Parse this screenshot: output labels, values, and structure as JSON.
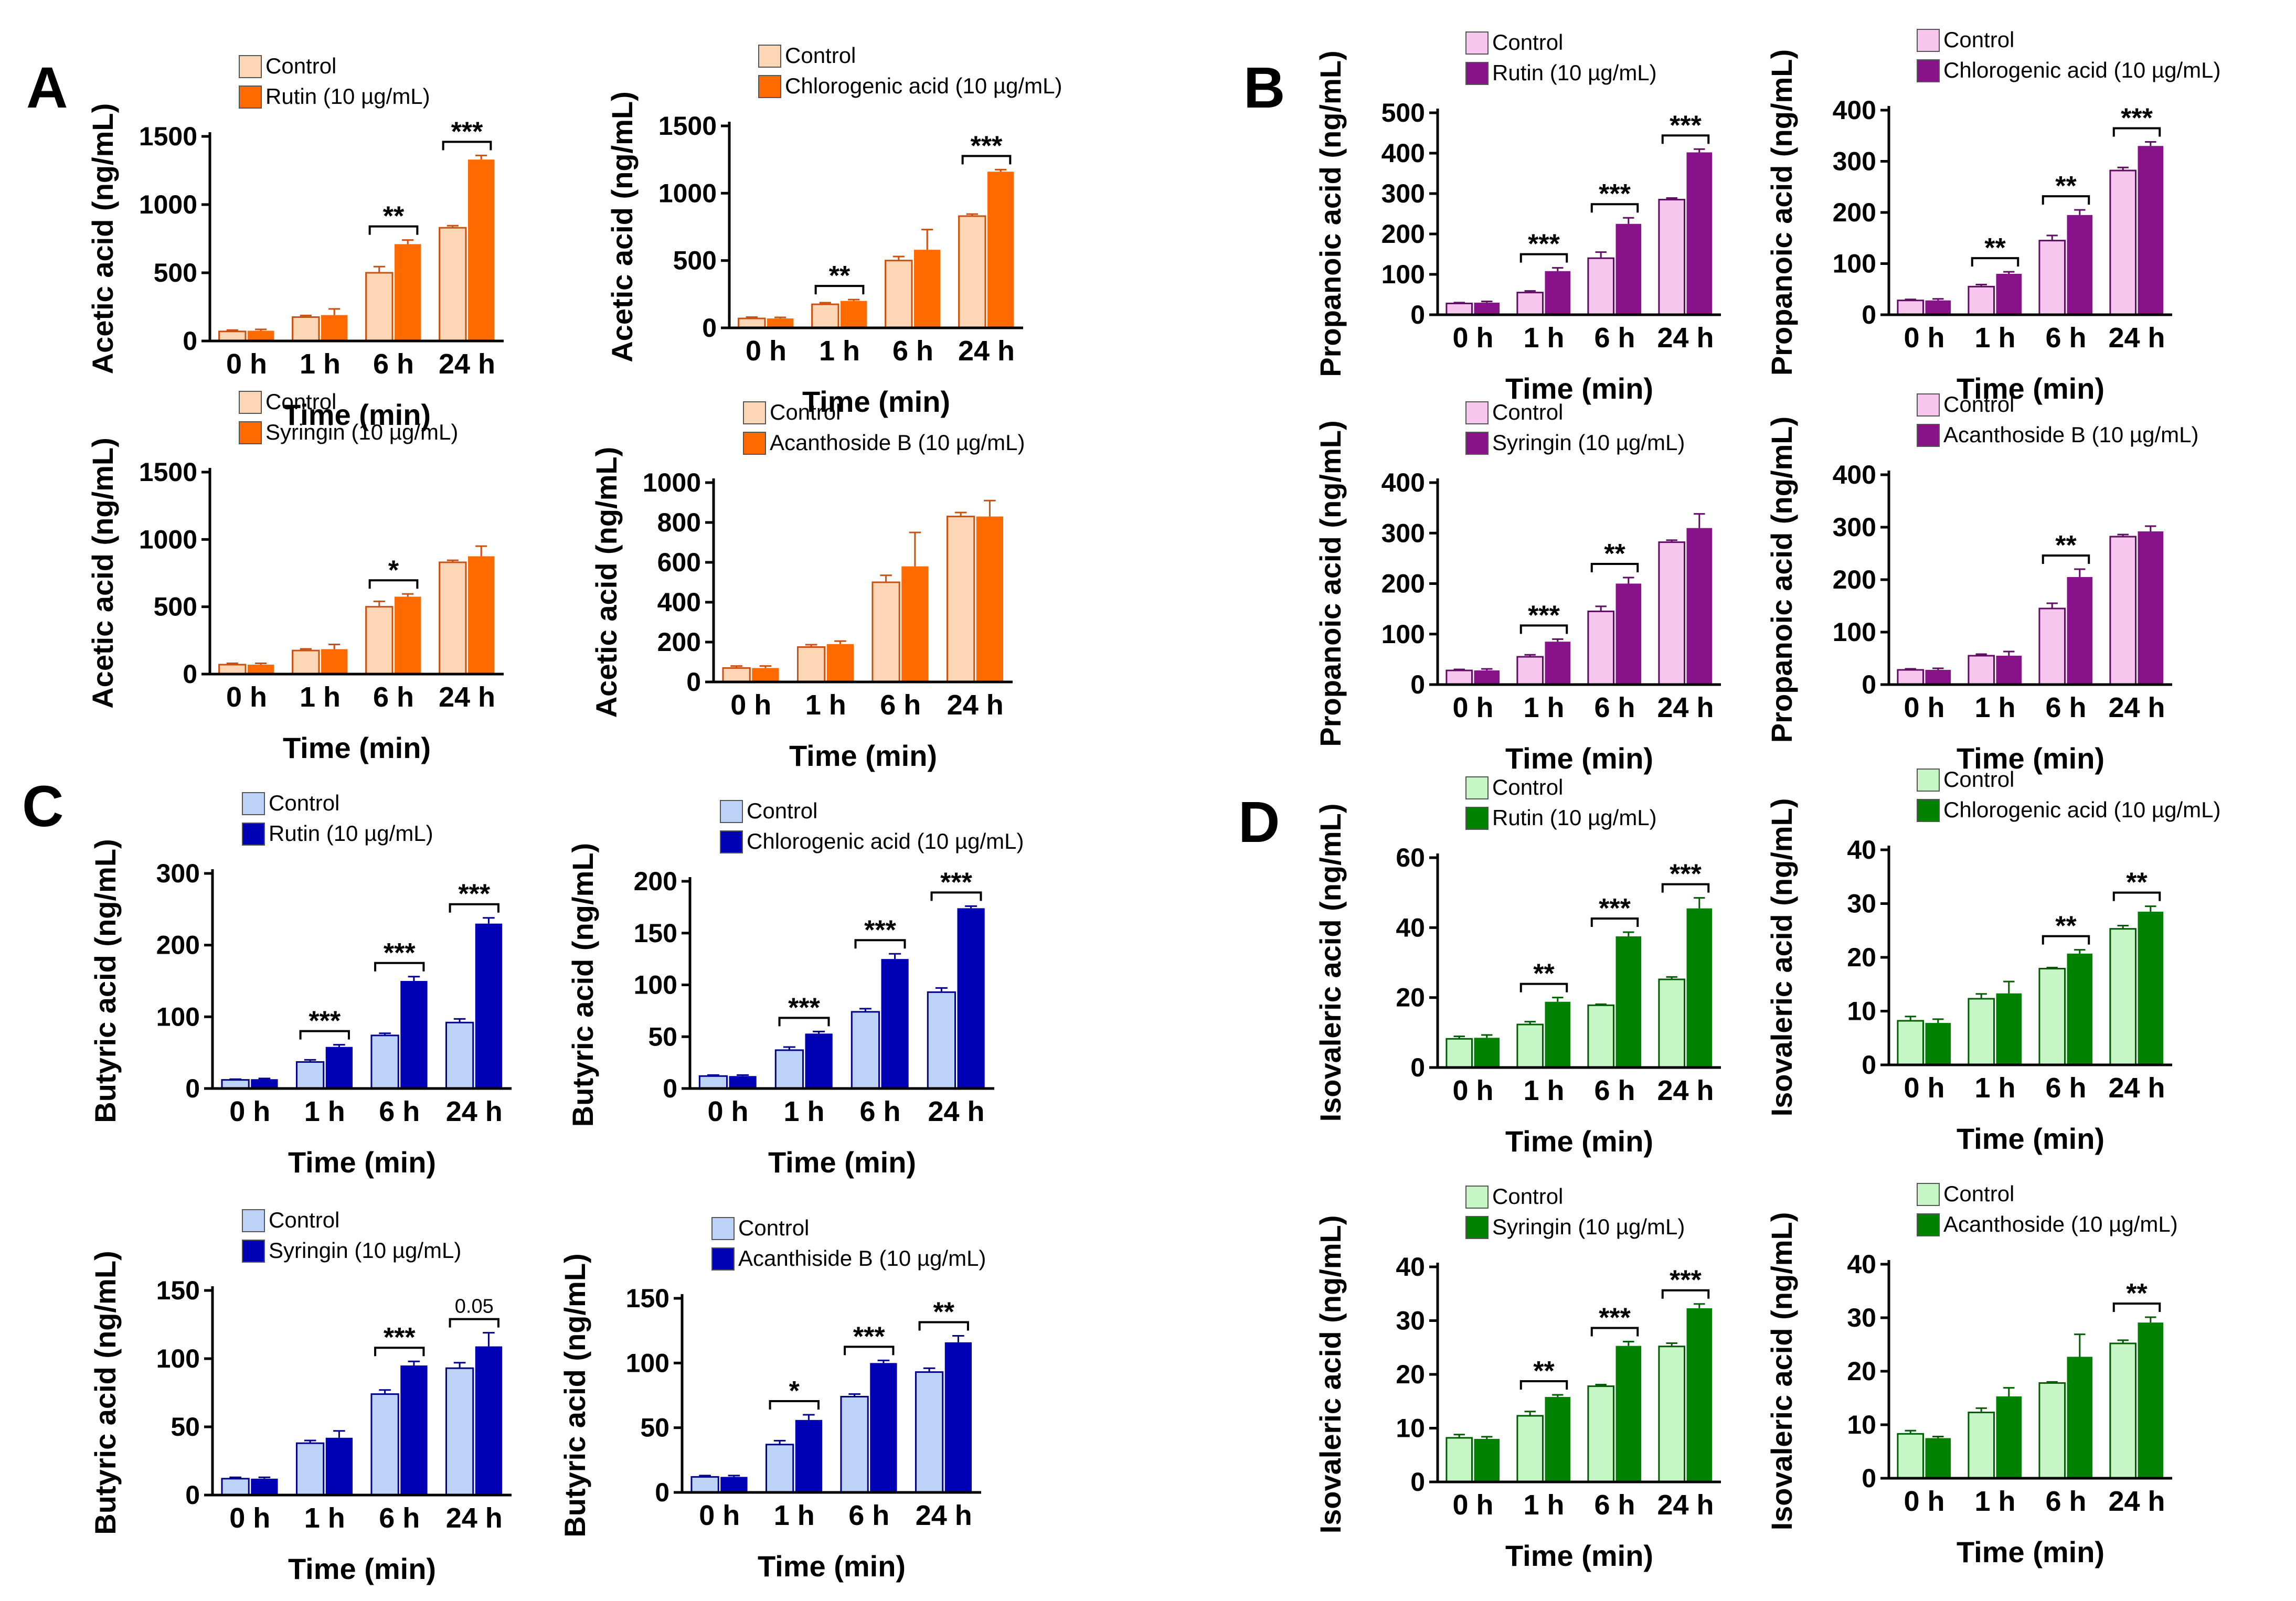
{
  "colors": {
    "acetic": {
      "control": "#fdd6b5",
      "treat": "#ff6a00",
      "err": "#c85010"
    },
    "propanoic": {
      "control": "#f6c6ef",
      "treat": "#87128a",
      "err": "#5f0d62"
    },
    "butyric": {
      "control": "#bcd2f6",
      "treat": "#0000b4",
      "err": "#000088"
    },
    "isovaleric": {
      "control": "#c6f5c6",
      "treat": "#008200",
      "err": "#005c00"
    }
  },
  "panel_letters": [
    "A",
    "B",
    "C",
    "D"
  ],
  "chart_data": [
    {
      "group": "A",
      "type": "bar",
      "palette": "acetic",
      "categories": [
        "0 h",
        "1 h",
        "6 h",
        "24 h"
      ],
      "series": [
        {
          "name": "Control",
          "values": [
            70,
            175,
            500,
            830
          ],
          "errors": [
            10,
            12,
            45,
            15
          ]
        },
        {
          "name": "Rutin (10 µg/mL)",
          "values": [
            75,
            190,
            710,
            1330
          ],
          "errors": [
            10,
            45,
            30,
            30
          ]
        }
      ],
      "ylabel": "Acetic acid (ng/mL)",
      "xlabel": "Time (min)",
      "ylim": [
        0,
        1500
      ],
      "yticks": [
        0,
        500,
        1000,
        1500
      ],
      "significance": [
        {
          "index": 2,
          "label": "**"
        },
        {
          "index": 3,
          "label": "***"
        }
      ]
    },
    {
      "group": "A",
      "type": "bar",
      "palette": "acetic",
      "categories": [
        "0 h",
        "1 h",
        "6 h",
        "24 h"
      ],
      "series": [
        {
          "name": "Control",
          "values": [
            70,
            175,
            500,
            830
          ],
          "errors": [
            10,
            12,
            30,
            15
          ]
        },
        {
          "name": "Chlorogenic acid (10 µg/mL)",
          "values": [
            70,
            200,
            580,
            1160
          ],
          "errors": [
            8,
            10,
            150,
            15
          ]
        }
      ],
      "ylabel": "Acetic acid (ng/mL)",
      "xlabel": "Time (min)",
      "ylim": [
        0,
        1500
      ],
      "yticks": [
        0,
        500,
        1000,
        1500
      ],
      "significance": [
        {
          "index": 1,
          "label": "**"
        },
        {
          "index": 3,
          "label": "***"
        }
      ]
    },
    {
      "group": "B",
      "type": "bar",
      "palette": "propanoic",
      "categories": [
        "0 h",
        "1 h",
        "6 h",
        "24 h"
      ],
      "series": [
        {
          "name": "Control",
          "values": [
            28,
            55,
            140,
            285
          ],
          "errors": [
            2,
            4,
            15,
            4
          ]
        },
        {
          "name": "Rutin (10 µg/mL)",
          "values": [
            30,
            108,
            225,
            402
          ],
          "errors": [
            3,
            8,
            15,
            8
          ]
        }
      ],
      "ylabel": "Propanoic acid (ng/mL)",
      "xlabel": "Time (min)",
      "ylim": [
        0,
        500
      ],
      "yticks": [
        0,
        100,
        200,
        300,
        400,
        500
      ],
      "significance": [
        {
          "index": 1,
          "label": "***"
        },
        {
          "index": 2,
          "label": "***"
        },
        {
          "index": 3,
          "label": "***"
        }
      ]
    },
    {
      "group": "B",
      "type": "bar",
      "palette": "propanoic",
      "categories": [
        "0 h",
        "1 h",
        "6 h",
        "24 h"
      ],
      "series": [
        {
          "name": "Control",
          "values": [
            28,
            55,
            145,
            282
          ],
          "errors": [
            2,
            4,
            10,
            6
          ]
        },
        {
          "name": "Chlorogenic acid (10 µg/mL)",
          "values": [
            28,
            80,
            195,
            330
          ],
          "errors": [
            3,
            4,
            10,
            8
          ]
        }
      ],
      "ylabel": "Propanoic acid (ng/mL)",
      "xlabel": "Time (min)",
      "ylim": [
        0,
        400
      ],
      "yticks": [
        0,
        100,
        200,
        300,
        400
      ],
      "significance": [
        {
          "index": 1,
          "label": "**"
        },
        {
          "index": 2,
          "label": "**"
        },
        {
          "index": 3,
          "label": "***"
        }
      ]
    },
    {
      "group": "A",
      "type": "bar",
      "palette": "acetic",
      "categories": [
        "0 h",
        "1 h",
        "6 h",
        "24 h"
      ],
      "series": [
        {
          "name": "Control",
          "values": [
            70,
            175,
            500,
            830
          ],
          "errors": [
            10,
            12,
            40,
            15
          ]
        },
        {
          "name": "Syringin (10 µg/mL)",
          "values": [
            70,
            185,
            575,
            875
          ],
          "errors": [
            10,
            35,
            20,
            75
          ]
        }
      ],
      "ylabel": "Acetic acid (ng/mL)",
      "xlabel": "Time (min)",
      "ylim": [
        0,
        1500
      ],
      "yticks": [
        0,
        500,
        1000,
        1500
      ],
      "significance": [
        {
          "index": 2,
          "label": "*"
        }
      ]
    },
    {
      "group": "A",
      "type": "bar",
      "palette": "acetic",
      "categories": [
        "0 h",
        "1 h",
        "6 h",
        "24 h"
      ],
      "series": [
        {
          "name": "Control",
          "values": [
            70,
            175,
            500,
            830
          ],
          "errors": [
            10,
            12,
            35,
            20
          ]
        },
        {
          "name": "Acanthoside B (10 µg/mL)",
          "values": [
            70,
            190,
            580,
            830
          ],
          "errors": [
            10,
            15,
            170,
            80
          ]
        }
      ],
      "ylabel": "Acetic acid (ng/mL)",
      "xlabel": "Time (min)",
      "ylim": [
        0,
        1000
      ],
      "yticks": [
        0,
        200,
        400,
        600,
        800,
        1000
      ],
      "significance": []
    },
    {
      "group": "B",
      "type": "bar",
      "palette": "propanoic",
      "categories": [
        "0 h",
        "1 h",
        "6 h",
        "24 h"
      ],
      "series": [
        {
          "name": "Control",
          "values": [
            28,
            55,
            145,
            282
          ],
          "errors": [
            2,
            4,
            10,
            4
          ]
        },
        {
          "name": "Syringin (10 µg/mL)",
          "values": [
            28,
            85,
            200,
            310
          ],
          "errors": [
            3,
            5,
            12,
            28
          ]
        }
      ],
      "ylabel": "Propanoic acid (ng/mL)",
      "xlabel": "Time (min)",
      "ylim": [
        0,
        400
      ],
      "yticks": [
        0,
        100,
        200,
        300,
        400
      ],
      "significance": [
        {
          "index": 1,
          "label": "***"
        },
        {
          "index": 2,
          "label": "**"
        }
      ]
    },
    {
      "group": "B",
      "type": "bar",
      "palette": "propanoic",
      "categories": [
        "0 h",
        "1 h",
        "6 h",
        "24 h"
      ],
      "series": [
        {
          "name": "Control",
          "values": [
            28,
            55,
            145,
            282
          ],
          "errors": [
            2,
            3,
            10,
            4
          ]
        },
        {
          "name": "Acanthoside B (10 µg/mL)",
          "values": [
            28,
            55,
            205,
            292
          ],
          "errors": [
            3,
            8,
            15,
            10
          ]
        }
      ],
      "ylabel": "Propanoic acid (ng/mL)",
      "xlabel": "Time (min)",
      "ylim": [
        0,
        400
      ],
      "yticks": [
        0,
        100,
        200,
        300,
        400
      ],
      "significance": [
        {
          "index": 2,
          "label": "**"
        }
      ]
    },
    {
      "group": "C",
      "type": "bar",
      "palette": "butyric",
      "categories": [
        "0 h",
        "1 h",
        "6 h",
        "24 h"
      ],
      "series": [
        {
          "name": "Control",
          "values": [
            12,
            37,
            74,
            92
          ],
          "errors": [
            1,
            3,
            3,
            5
          ]
        },
        {
          "name": "Rutin (10 µg/mL)",
          "values": [
            13,
            58,
            150,
            230
          ],
          "errors": [
            1,
            3,
            6,
            8
          ]
        }
      ],
      "ylabel": "Butyric acid (ng/mL)",
      "xlabel": "Time (min)",
      "ylim": [
        0,
        300
      ],
      "yticks": [
        0,
        100,
        200,
        300
      ],
      "significance": [
        {
          "index": 1,
          "label": "***"
        },
        {
          "index": 2,
          "label": "***"
        },
        {
          "index": 3,
          "label": "***"
        }
      ]
    },
    {
      "group": "C",
      "type": "bar",
      "palette": "butyric",
      "categories": [
        "0 h",
        "1 h",
        "6 h",
        "24 h"
      ],
      "series": [
        {
          "name": "Control",
          "values": [
            12,
            37,
            74,
            93
          ],
          "errors": [
            1,
            3,
            3,
            4
          ]
        },
        {
          "name": "Chlorogenic acid (10 µg/mL)",
          "values": [
            12,
            53,
            125,
            174
          ],
          "errors": [
            1,
            2,
            5,
            2
          ]
        }
      ],
      "ylabel": "Butyric acid (ng/mL)",
      "xlabel": "Time (min)",
      "ylim": [
        0,
        200
      ],
      "yticks": [
        0,
        50,
        100,
        150,
        200
      ],
      "significance": [
        {
          "index": 1,
          "label": "***"
        },
        {
          "index": 2,
          "label": "***"
        },
        {
          "index": 3,
          "label": "***"
        }
      ]
    },
    {
      "group": "D",
      "type": "bar",
      "palette": "isovaleric",
      "categories": [
        "0 h",
        "1 h",
        "6 h",
        "24 h"
      ],
      "series": [
        {
          "name": "Control",
          "values": [
            8.2,
            12.3,
            17.8,
            25.2
          ],
          "errors": [
            0.7,
            0.8,
            0.3,
            0.7
          ]
        },
        {
          "name": "Rutin (10 µg/mL)",
          "values": [
            8.5,
            18.8,
            37.5,
            45.5
          ],
          "errors": [
            0.8,
            1.2,
            1.2,
            3
          ]
        }
      ],
      "ylabel": "Isovaleric acid (ng/mL)",
      "xlabel": "Time (min)",
      "ylim": [
        0,
        60
      ],
      "yticks": [
        0,
        20,
        40,
        60
      ],
      "significance": [
        {
          "index": 1,
          "label": "**"
        },
        {
          "index": 2,
          "label": "***"
        },
        {
          "index": 3,
          "label": "***"
        }
      ]
    },
    {
      "group": "D",
      "type": "bar",
      "palette": "isovaleric",
      "categories": [
        "0 h",
        "1 h",
        "6 h",
        "24 h"
      ],
      "series": [
        {
          "name": "Control",
          "values": [
            8.2,
            12.3,
            17.9,
            25.3
          ],
          "errors": [
            0.8,
            0.9,
            0.2,
            0.6
          ]
        },
        {
          "name": "Chlorogenic acid (10 µg/mL)",
          "values": [
            7.8,
            13.3,
            20.7,
            28.5
          ],
          "errors": [
            0.7,
            2.2,
            0.7,
            1
          ]
        }
      ],
      "ylabel": "Isovaleric acid (ng/mL)",
      "xlabel": "Time (min)",
      "ylim": [
        0,
        40
      ],
      "yticks": [
        0,
        10,
        20,
        30,
        40
      ],
      "significance": [
        {
          "index": 2,
          "label": "**"
        },
        {
          "index": 3,
          "label": "**"
        }
      ]
    },
    {
      "group": "C",
      "type": "bar",
      "palette": "butyric",
      "categories": [
        "0 h",
        "1 h",
        "6 h",
        "24 h"
      ],
      "series": [
        {
          "name": "Control",
          "values": [
            12,
            38,
            74,
            93
          ],
          "errors": [
            1,
            2,
            3,
            4
          ]
        },
        {
          "name": "Syringin (10 µg/mL)",
          "values": [
            12,
            42,
            95,
            109
          ],
          "errors": [
            1,
            5,
            3,
            10
          ]
        }
      ],
      "ylabel": "Butyric acid (ng/mL)",
      "xlabel": "Time (min)",
      "ylim": [
        0,
        150
      ],
      "yticks": [
        0,
        50,
        100,
        150
      ],
      "significance": [
        {
          "index": 2,
          "label": "***"
        },
        {
          "index": 3,
          "label": "0.05",
          "small": true
        }
      ]
    },
    {
      "group": "C",
      "type": "bar",
      "palette": "butyric",
      "categories": [
        "0 h",
        "1 h",
        "6 h",
        "24 h"
      ],
      "series": [
        {
          "name": "Control",
          "values": [
            12,
            37,
            74,
            93
          ],
          "errors": [
            1,
            3,
            2,
            3
          ]
        },
        {
          "name": "Acanthiside B (10 µg/mL)",
          "values": [
            12,
            56,
            100,
            116
          ],
          "errors": [
            1,
            4,
            2,
            5
          ]
        }
      ],
      "ylabel": "Butyric acid (ng/mL)",
      "xlabel": "Time (min)",
      "ylim": [
        0,
        150
      ],
      "yticks": [
        0,
        50,
        100,
        150
      ],
      "significance": [
        {
          "index": 1,
          "label": "*"
        },
        {
          "index": 2,
          "label": "***"
        },
        {
          "index": 3,
          "label": "**"
        }
      ]
    },
    {
      "group": "D",
      "type": "bar",
      "palette": "isovaleric",
      "categories": [
        "0 h",
        "1 h",
        "6 h",
        "24 h"
      ],
      "series": [
        {
          "name": "Control",
          "values": [
            8.2,
            12.3,
            17.8,
            25.2
          ],
          "errors": [
            0.6,
            0.8,
            0.3,
            0.6
          ]
        },
        {
          "name": "Syringin (10 µg/mL)",
          "values": [
            8.0,
            15.8,
            25.3,
            32.3
          ],
          "errors": [
            0.4,
            0.4,
            0.8,
            0.8
          ]
        }
      ],
      "ylabel": "Isovaleric acid (ng/mL)",
      "xlabel": "Time (min)",
      "ylim": [
        0,
        40
      ],
      "yticks": [
        0,
        10,
        20,
        30,
        40
      ],
      "significance": [
        {
          "index": 1,
          "label": "**"
        },
        {
          "index": 2,
          "label": "***"
        },
        {
          "index": 3,
          "label": "***"
        }
      ]
    },
    {
      "group": "D",
      "type": "bar",
      "palette": "isovaleric",
      "categories": [
        "0 h",
        "1 h",
        "6 h",
        "24 h"
      ],
      "series": [
        {
          "name": "Control",
          "values": [
            8.3,
            12.3,
            17.8,
            25.2
          ],
          "errors": [
            0.6,
            0.8,
            0.2,
            0.6
          ]
        },
        {
          "name": "Acanthoside (10 µg/mL)",
          "values": [
            7.5,
            15.3,
            22.7,
            29.1
          ],
          "errors": [
            0.3,
            1.6,
            4.2,
            1
          ]
        }
      ],
      "ylabel": "Isovaleric acid (ng/mL)",
      "xlabel": "Time (min)",
      "ylim": [
        0,
        40
      ],
      "yticks": [
        0,
        10,
        20,
        30,
        40
      ],
      "significance": [
        {
          "index": 3,
          "label": "**"
        }
      ]
    }
  ]
}
